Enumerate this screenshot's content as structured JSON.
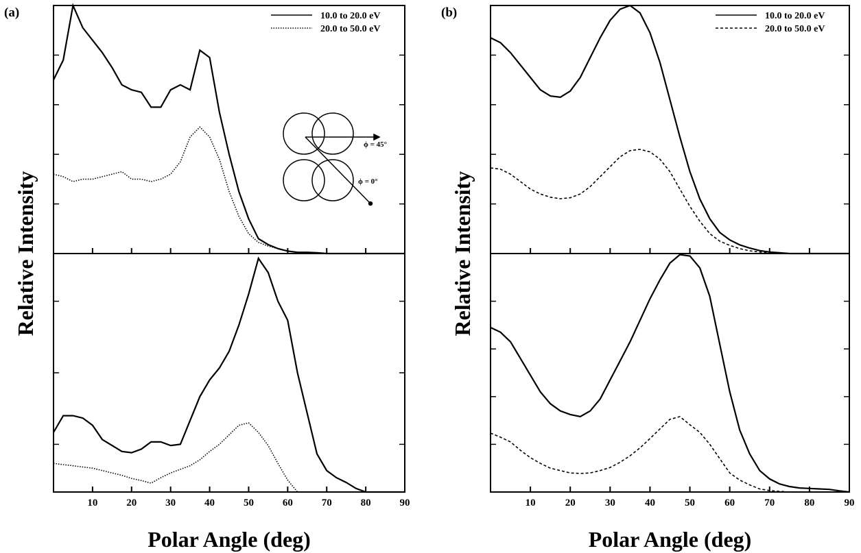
{
  "chart_data": [
    {
      "type": "line",
      "panel_label": "(a)",
      "ylabel": "Relative Intensity",
      "legend": "upper right",
      "annotations": [
        "ϕ = 45°",
        "ϕ = 0°"
      ],
      "x": [
        0,
        2.5,
        5,
        7.5,
        10,
        12.5,
        15,
        17.5,
        20,
        22.5,
        25,
        27.5,
        30,
        32.5,
        35,
        37.5,
        40,
        42.5,
        45,
        47.5,
        50,
        52.5,
        55,
        57.5,
        60,
        62.5,
        65,
        67.5,
        70,
        72.5,
        75,
        77.5,
        80,
        82.5,
        85,
        87.5,
        90
      ],
      "xlim": [
        0,
        90
      ],
      "ylim": [
        0,
        100
      ],
      "xticks": [
        10,
        20,
        30,
        40,
        50,
        60,
        70,
        80,
        90
      ],
      "xtick_labels": false,
      "yticks": [
        20,
        40,
        60,
        80
      ],
      "series": [
        {
          "name": "10.0 to 20.0 eV",
          "color": "#000000",
          "dash": "solid",
          "values": [
            70,
            78,
            100,
            91,
            86,
            81,
            75,
            68,
            66,
            65,
            59,
            59,
            66,
            68,
            66,
            82,
            79,
            57,
            40,
            25,
            14,
            6,
            3.6,
            2,
            1,
            0.5,
            0.5,
            0.3,
            0,
            0,
            0,
            0,
            0,
            0,
            0,
            0,
            0
          ]
        },
        {
          "name": "20.0 to 50.0 eV",
          "color": "#000000",
          "dash": "dotted",
          "values": [
            32,
            31,
            29,
            30,
            30,
            31,
            32,
            33,
            30,
            30,
            29,
            30,
            32,
            37,
            47,
            51,
            47,
            38,
            25,
            15,
            8,
            4.5,
            3,
            2,
            1,
            0.3,
            0,
            0,
            0,
            0,
            0,
            0,
            0,
            0,
            0,
            0,
            0
          ]
        }
      ]
    },
    {
      "type": "line",
      "xlabel": "Polar Angle (deg)",
      "x": [
        0,
        2.5,
        5,
        7.5,
        10,
        12.5,
        15,
        17.5,
        20,
        22.5,
        25,
        27.5,
        30,
        32.5,
        35,
        37.5,
        40,
        42.5,
        45,
        47.5,
        50,
        52.5,
        55,
        57.5,
        60,
        62.5,
        65,
        67.5,
        70,
        72.5,
        75,
        77.5,
        80,
        82.5,
        85,
        87.5,
        90
      ],
      "xlim": [
        0,
        90
      ],
      "ylim": [
        0,
        100
      ],
      "xticks": [
        10,
        20,
        30,
        40,
        50,
        60,
        70,
        80,
        90
      ],
      "xtick_labels": true,
      "yticks": [
        20,
        50,
        80
      ],
      "series": [
        {
          "color": "#000000",
          "dash": "solid",
          "values": [
            25,
            32,
            32,
            31,
            28,
            22,
            19.5,
            17,
            16.5,
            18,
            21,
            21,
            19.5,
            20,
            30,
            40,
            47,
            52,
            59,
            70,
            83,
            98,
            92,
            80,
            72,
            50,
            33,
            16,
            9,
            6,
            4,
            1.5,
            0,
            0,
            0,
            0,
            0
          ]
        },
        {
          "color": "#000000",
          "dash": "dotted",
          "values": [
            12,
            11.5,
            11,
            10.5,
            10,
            9,
            8,
            7,
            5.7,
            4.8,
            3.7,
            6,
            8,
            9.5,
            11,
            13.5,
            17,
            20,
            24,
            28,
            29,
            25,
            19.5,
            12,
            5,
            0,
            null,
            null,
            null,
            null,
            null,
            null,
            null,
            null,
            null,
            null,
            null
          ]
        }
      ]
    },
    {
      "type": "line",
      "panel_label": "(b)",
      "ylabel": "Relative Intensity",
      "legend": "upper right",
      "x": [
        0,
        2.5,
        5,
        7.5,
        10,
        12.5,
        15,
        17.5,
        20,
        22.5,
        25,
        27.5,
        30,
        32.5,
        35,
        37.5,
        40,
        42.5,
        45,
        47.5,
        50,
        52.5,
        55,
        57.5,
        60,
        62.5,
        65,
        67.5,
        70,
        72.5,
        75,
        77.5,
        80,
        82.5,
        85,
        87.5,
        90
      ],
      "xlim": [
        0,
        90
      ],
      "ylim": [
        0,
        100
      ],
      "xticks": [
        10,
        20,
        30,
        40,
        50,
        60,
        70,
        80,
        90
      ],
      "xtick_labels": false,
      "yticks": [
        20,
        40,
        60,
        80
      ],
      "series": [
        {
          "name": "10.0 to 20.0 eV",
          "color": "#000000",
          "dash": "solid",
          "values": [
            87,
            85,
            81,
            76,
            71,
            66,
            63.5,
            63,
            65.5,
            71,
            79,
            87,
            94,
            98.5,
            100,
            97,
            89,
            77,
            62,
            47,
            33,
            22,
            14,
            8.5,
            5.5,
            3.5,
            2.2,
            1.2,
            0.6,
            0.3,
            0,
            0,
            0,
            0,
            0,
            0,
            0
          ]
        },
        {
          "name": "20.0 to 50.0 eV",
          "color": "#000000",
          "dash": "dashed",
          "values": [
            34.5,
            34,
            32,
            29,
            26,
            24,
            22.7,
            22.1,
            22.5,
            24,
            27,
            31,
            35,
            39,
            41.5,
            42,
            41,
            38,
            33,
            26,
            19,
            13,
            8,
            5,
            3.3,
            2,
            1.1,
            0.6,
            0.3,
            0,
            0,
            0,
            0,
            0,
            0,
            0,
            0
          ]
        }
      ]
    },
    {
      "type": "line",
      "xlabel": "Polar Angle (deg)",
      "x": [
        0,
        2.5,
        5,
        7.5,
        10,
        12.5,
        15,
        17.5,
        20,
        22.5,
        25,
        27.5,
        30,
        32.5,
        35,
        37.5,
        40,
        42.5,
        45,
        47.5,
        50,
        52.5,
        55,
        57.5,
        60,
        62.5,
        65,
        67.5,
        70,
        72.5,
        75,
        77.5,
        80,
        82.5,
        85,
        87.5,
        90
      ],
      "xlim": [
        0,
        90
      ],
      "ylim": [
        0,
        100
      ],
      "xticks": [
        10,
        20,
        30,
        40,
        50,
        60,
        70,
        80,
        90
      ],
      "xtick_labels": true,
      "yticks": [
        20,
        40,
        60,
        80
      ],
      "series": [
        {
          "color": "#000000",
          "dash": "solid",
          "values": [
            69,
            67,
            63,
            56,
            49,
            42,
            37,
            34,
            32.5,
            31.6,
            34,
            39,
            47,
            55,
            63,
            72,
            81,
            89,
            96,
            99.5,
            99,
            94,
            82,
            62,
            42,
            26,
            16,
            9,
            5.5,
            3.4,
            2.3,
            1.7,
            1.5,
            1.3,
            1.1,
            0.5,
            0
          ]
        },
        {
          "color": "#000000",
          "dash": "dashed",
          "values": [
            24.7,
            23,
            21,
            17.5,
            14.4,
            12,
            10,
            9,
            8,
            7.8,
            8,
            9,
            10.3,
            12.5,
            15.2,
            18.5,
            22.4,
            26.5,
            30.5,
            31.6,
            28.2,
            25,
            20,
            14,
            8,
            5,
            3,
            1.3,
            0.6,
            0.3,
            0,
            0,
            0,
            0,
            0,
            0,
            0
          ]
        }
      ]
    }
  ]
}
